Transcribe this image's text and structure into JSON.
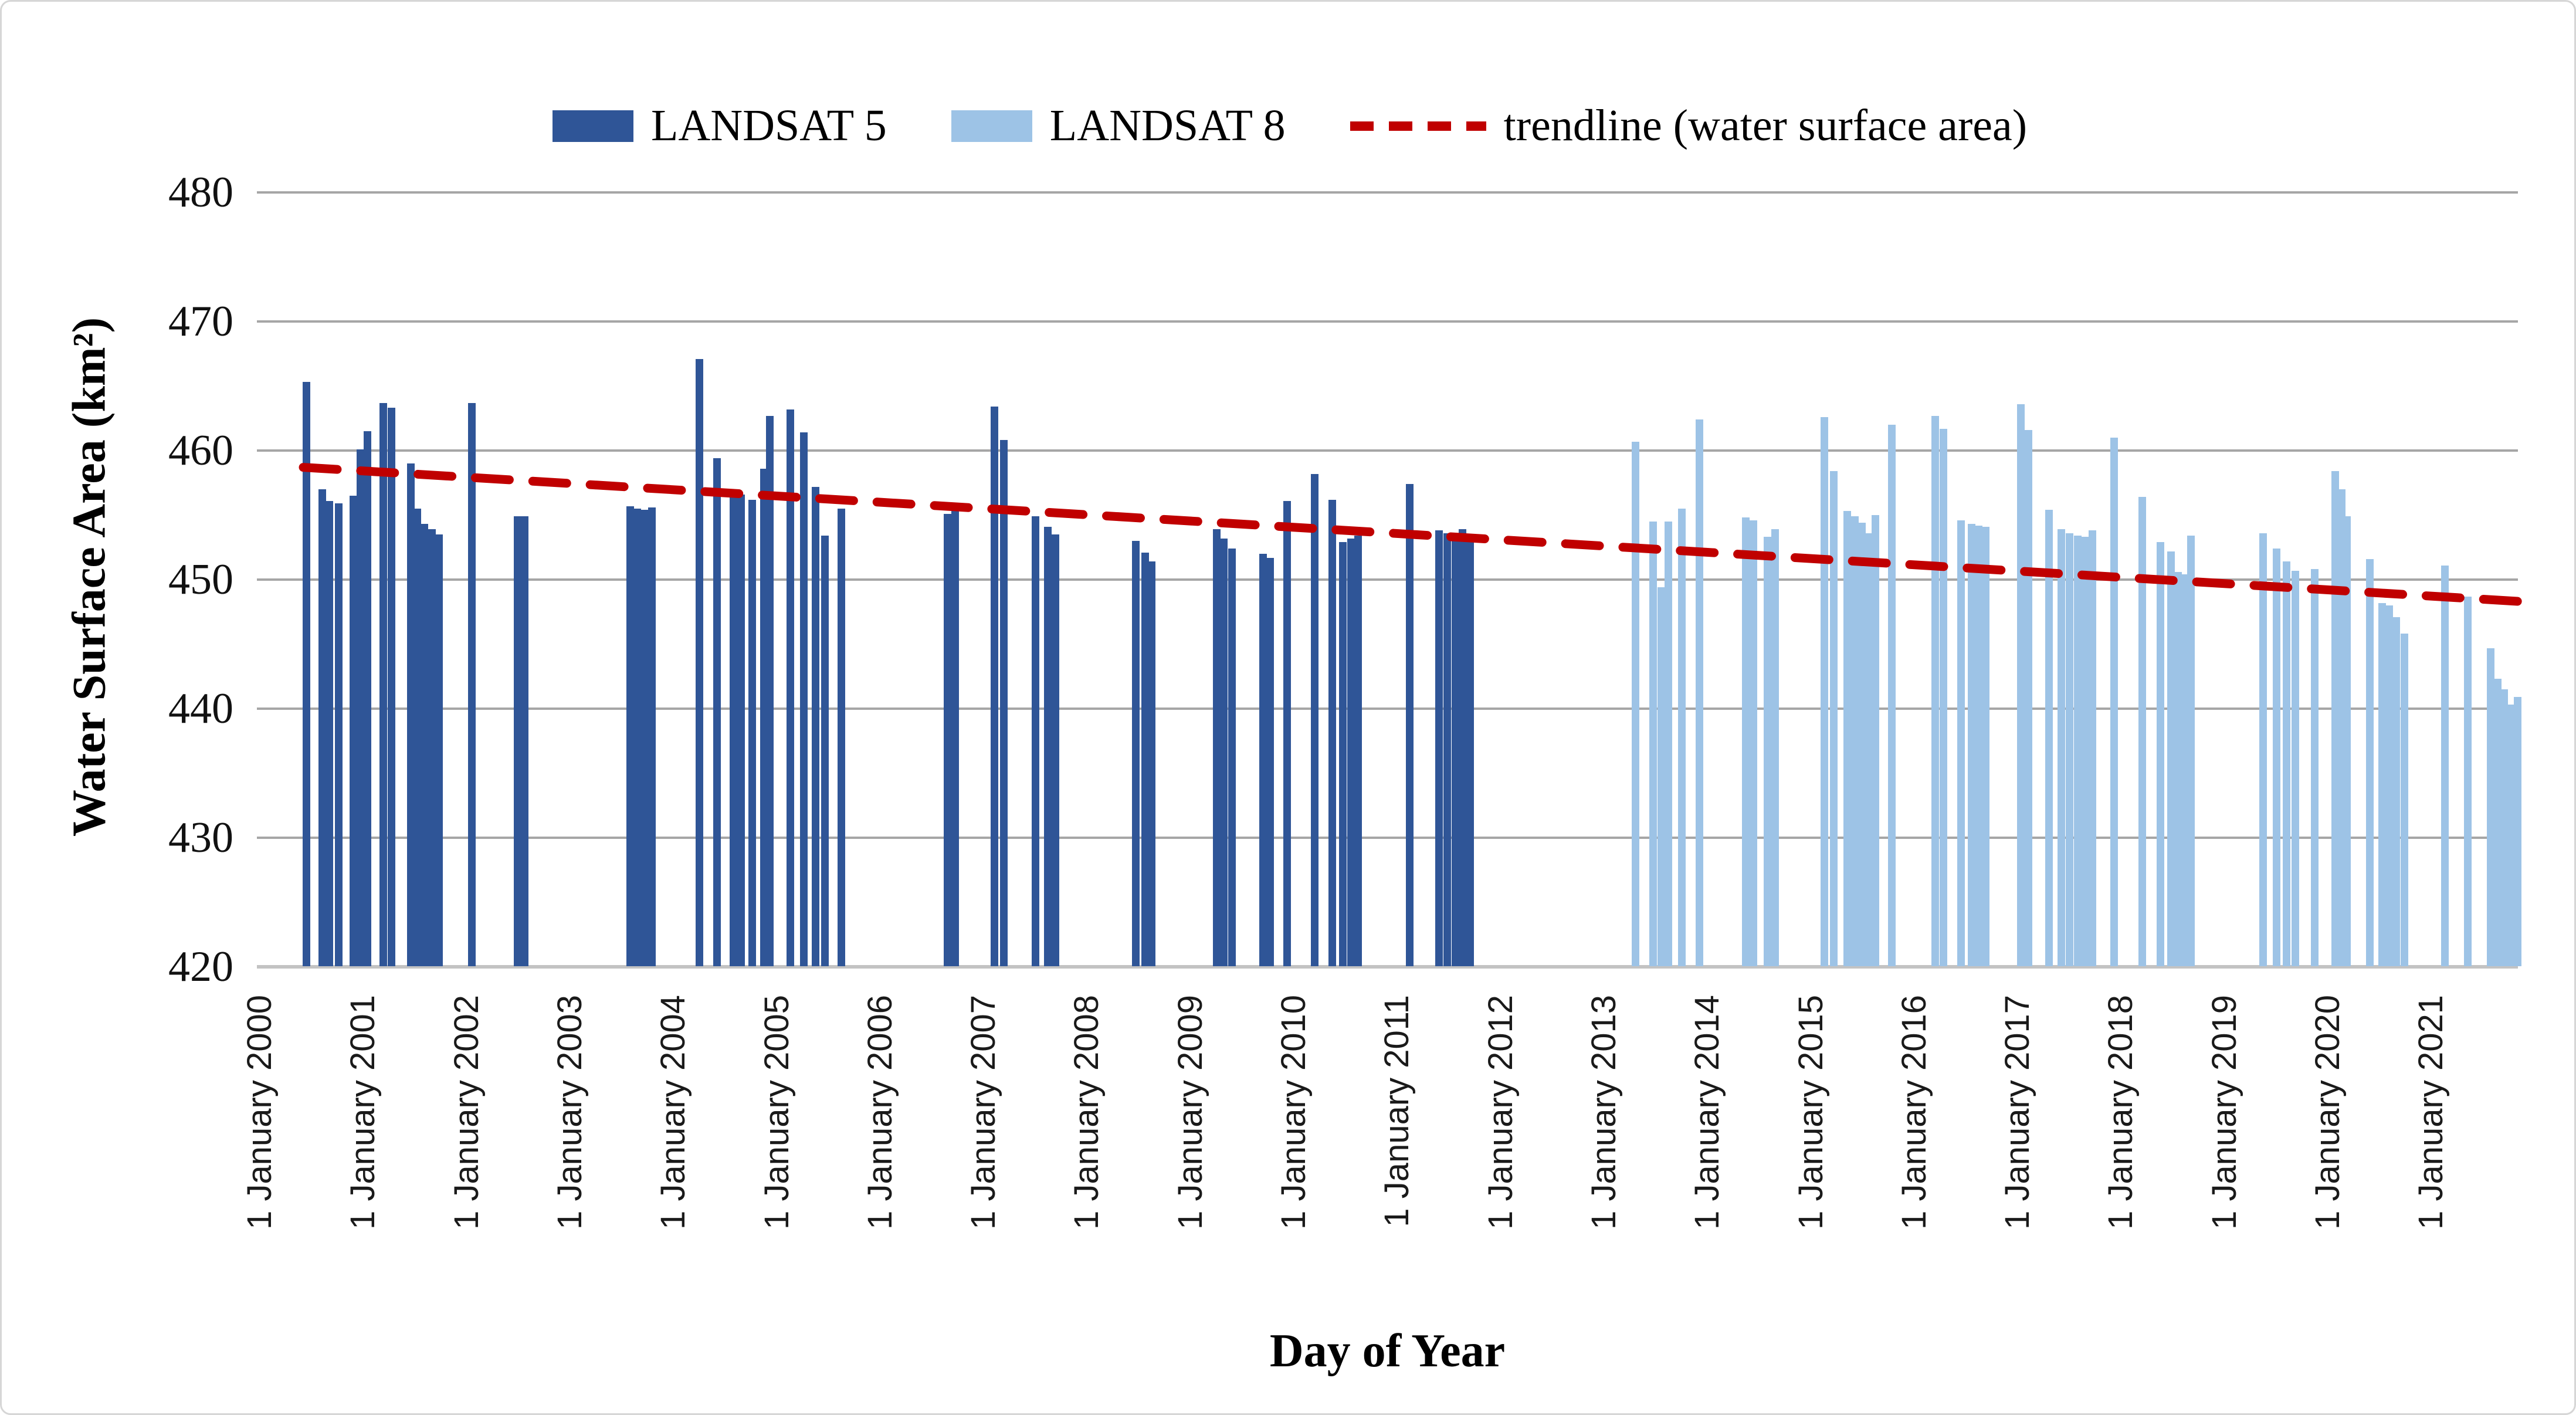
{
  "legend": {
    "landsat5_label": "LANDSAT 5",
    "landsat8_label": "LANDSAT 8",
    "trendline_label": "trendline (water surface area)"
  },
  "axes": {
    "y_title": "Water Surface Area (km²)",
    "x_title": "Day of Year"
  },
  "colors": {
    "landsat5": "#2F5597",
    "landsat8": "#9DC3E6",
    "trendline": "#C00000",
    "gridline": "#A6A6A6",
    "axisline": "#C3C3C3"
  },
  "chart_data": {
    "type": "bar",
    "title": "",
    "xlabel": "Day of Year",
    "ylabel": "Water Surface Area (km²)",
    "ylim": [
      420,
      480
    ],
    "xlim": [
      2000.0,
      2021.93
    ],
    "grid": "horizontal",
    "legend_position": "top-center",
    "y_ticks": [
      480,
      470,
      460,
      450,
      440,
      430,
      420
    ],
    "x_tick_years": [
      2000,
      2001,
      2002,
      2003,
      2004,
      2005,
      2006,
      2007,
      2008,
      2009,
      2010,
      2011,
      2012,
      2013,
      2014,
      2015,
      2016,
      2017,
      2018,
      2019,
      2020,
      2021
    ],
    "x_tick_labels": [
      "1 January 2000",
      "1 January 2001",
      "1 January 2002",
      "1 January 2003",
      "1 January 2004",
      "1 January 2005",
      "1 January 2006",
      "1 January 2007",
      "1 January 2008",
      "1 January 2009",
      "1 January 2010",
      "1 January 2011",
      "1 January 2012",
      "1 January 2013",
      "1 January 2014",
      "1 January 2015",
      "1 January 2016",
      "1 January 2017",
      "1 January 2018",
      "1 January 2019",
      "1 January 2020",
      "1 January 2021"
    ],
    "series": [
      {
        "name": "LANDSAT 5",
        "color": "#2F5597",
        "points": [
          [
            2000.45,
            465.3
          ],
          [
            2000.6,
            457.0
          ],
          [
            2000.67,
            456.1
          ],
          [
            2000.76,
            455.9
          ],
          [
            2000.9,
            456.5
          ],
          [
            2000.97,
            460.1
          ],
          [
            2001.04,
            461.5
          ],
          [
            2001.19,
            463.7
          ],
          [
            2001.27,
            463.3
          ],
          [
            2001.46,
            459.0
          ],
          [
            2001.52,
            455.5
          ],
          [
            2001.59,
            454.3
          ],
          [
            2001.66,
            453.9
          ],
          [
            2001.73,
            453.5
          ],
          [
            2002.05,
            463.7
          ],
          [
            2002.49,
            454.9
          ],
          [
            2002.56,
            454.9
          ],
          [
            2003.58,
            455.7
          ],
          [
            2003.65,
            455.5
          ],
          [
            2003.72,
            455.4
          ],
          [
            2003.79,
            455.6
          ],
          [
            2004.25,
            467.1
          ],
          [
            2004.42,
            459.4
          ],
          [
            2004.58,
            456.4
          ],
          [
            2004.65,
            456.6
          ],
          [
            2004.76,
            456.2
          ],
          [
            2004.87,
            458.6
          ],
          [
            2004.93,
            462.7
          ],
          [
            2005.13,
            463.2
          ],
          [
            2005.26,
            461.4
          ],
          [
            2005.37,
            457.2
          ],
          [
            2005.46,
            453.4
          ],
          [
            2005.62,
            455.5
          ],
          [
            2006.65,
            455.1
          ],
          [
            2006.72,
            455.6
          ],
          [
            2007.1,
            463.4
          ],
          [
            2007.19,
            460.8
          ],
          [
            2007.5,
            454.9
          ],
          [
            2007.62,
            454.1
          ],
          [
            2007.69,
            453.5
          ],
          [
            2008.47,
            453.0
          ],
          [
            2008.56,
            452.1
          ],
          [
            2008.62,
            451.4
          ],
          [
            2009.25,
            453.9
          ],
          [
            2009.32,
            453.2
          ],
          [
            2009.4,
            452.4
          ],
          [
            2009.7,
            452.0
          ],
          [
            2009.77,
            451.7
          ],
          [
            2009.93,
            456.1
          ],
          [
            2010.2,
            458.2
          ],
          [
            2010.37,
            456.2
          ],
          [
            2010.47,
            452.9
          ],
          [
            2010.55,
            453.2
          ],
          [
            2010.62,
            453.4
          ],
          [
            2011.12,
            457.4
          ],
          [
            2011.4,
            453.8
          ],
          [
            2011.48,
            453.6
          ],
          [
            2011.56,
            453.4
          ],
          [
            2011.63,
            453.9
          ],
          [
            2011.7,
            453.2
          ]
        ]
      },
      {
        "name": "LANDSAT 8",
        "color": "#9DC3E6",
        "points": [
          [
            2013.3,
            460.7
          ],
          [
            2013.47,
            454.5
          ],
          [
            2013.55,
            449.4
          ],
          [
            2013.62,
            454.5
          ],
          [
            2013.75,
            455.5
          ],
          [
            2013.92,
            462.4
          ],
          [
            2014.37,
            454.8
          ],
          [
            2014.44,
            454.6
          ],
          [
            2014.58,
            453.3
          ],
          [
            2014.65,
            453.9
          ],
          [
            2015.13,
            462.6
          ],
          [
            2015.22,
            458.4
          ],
          [
            2015.35,
            455.3
          ],
          [
            2015.42,
            454.9
          ],
          [
            2015.49,
            454.4
          ],
          [
            2015.56,
            453.6
          ],
          [
            2015.62,
            455.0
          ],
          [
            2015.78,
            462.0
          ],
          [
            2016.2,
            462.7
          ],
          [
            2016.28,
            461.7
          ],
          [
            2016.45,
            454.6
          ],
          [
            2016.55,
            454.3
          ],
          [
            2016.62,
            454.2
          ],
          [
            2016.69,
            454.1
          ],
          [
            2017.03,
            463.6
          ],
          [
            2017.1,
            461.6
          ],
          [
            2017.3,
            455.4
          ],
          [
            2017.42,
            453.9
          ],
          [
            2017.5,
            453.6
          ],
          [
            2017.58,
            453.4
          ],
          [
            2017.65,
            453.3
          ],
          [
            2017.72,
            453.8
          ],
          [
            2017.93,
            461.0
          ],
          [
            2018.2,
            456.4
          ],
          [
            2018.38,
            452.9
          ],
          [
            2018.48,
            452.2
          ],
          [
            2018.55,
            450.6
          ],
          [
            2018.61,
            450.4
          ],
          [
            2018.67,
            453.4
          ],
          [
            2019.37,
            453.6
          ],
          [
            2019.5,
            452.4
          ],
          [
            2019.6,
            451.4
          ],
          [
            2019.68,
            450.7
          ],
          [
            2019.87,
            450.8
          ],
          [
            2020.07,
            458.4
          ],
          [
            2020.13,
            457.0
          ],
          [
            2020.18,
            454.9
          ],
          [
            2020.4,
            451.6
          ],
          [
            2020.52,
            448.2
          ],
          [
            2020.59,
            448.0
          ],
          [
            2020.66,
            447.1
          ],
          [
            2020.74,
            445.8
          ],
          [
            2021.13,
            451.1
          ],
          [
            2021.35,
            448.7
          ],
          [
            2021.57,
            444.7
          ],
          [
            2021.64,
            442.3
          ],
          [
            2021.7,
            441.5
          ],
          [
            2021.76,
            440.3
          ],
          [
            2021.83,
            440.9
          ]
        ]
      }
    ],
    "trendline": {
      "name": "trendline (water surface area)",
      "color": "#C00000",
      "style": "dashed",
      "x1": 2000.42,
      "y1": 458.7,
      "x2": 2021.87,
      "y2": 448.3
    }
  }
}
